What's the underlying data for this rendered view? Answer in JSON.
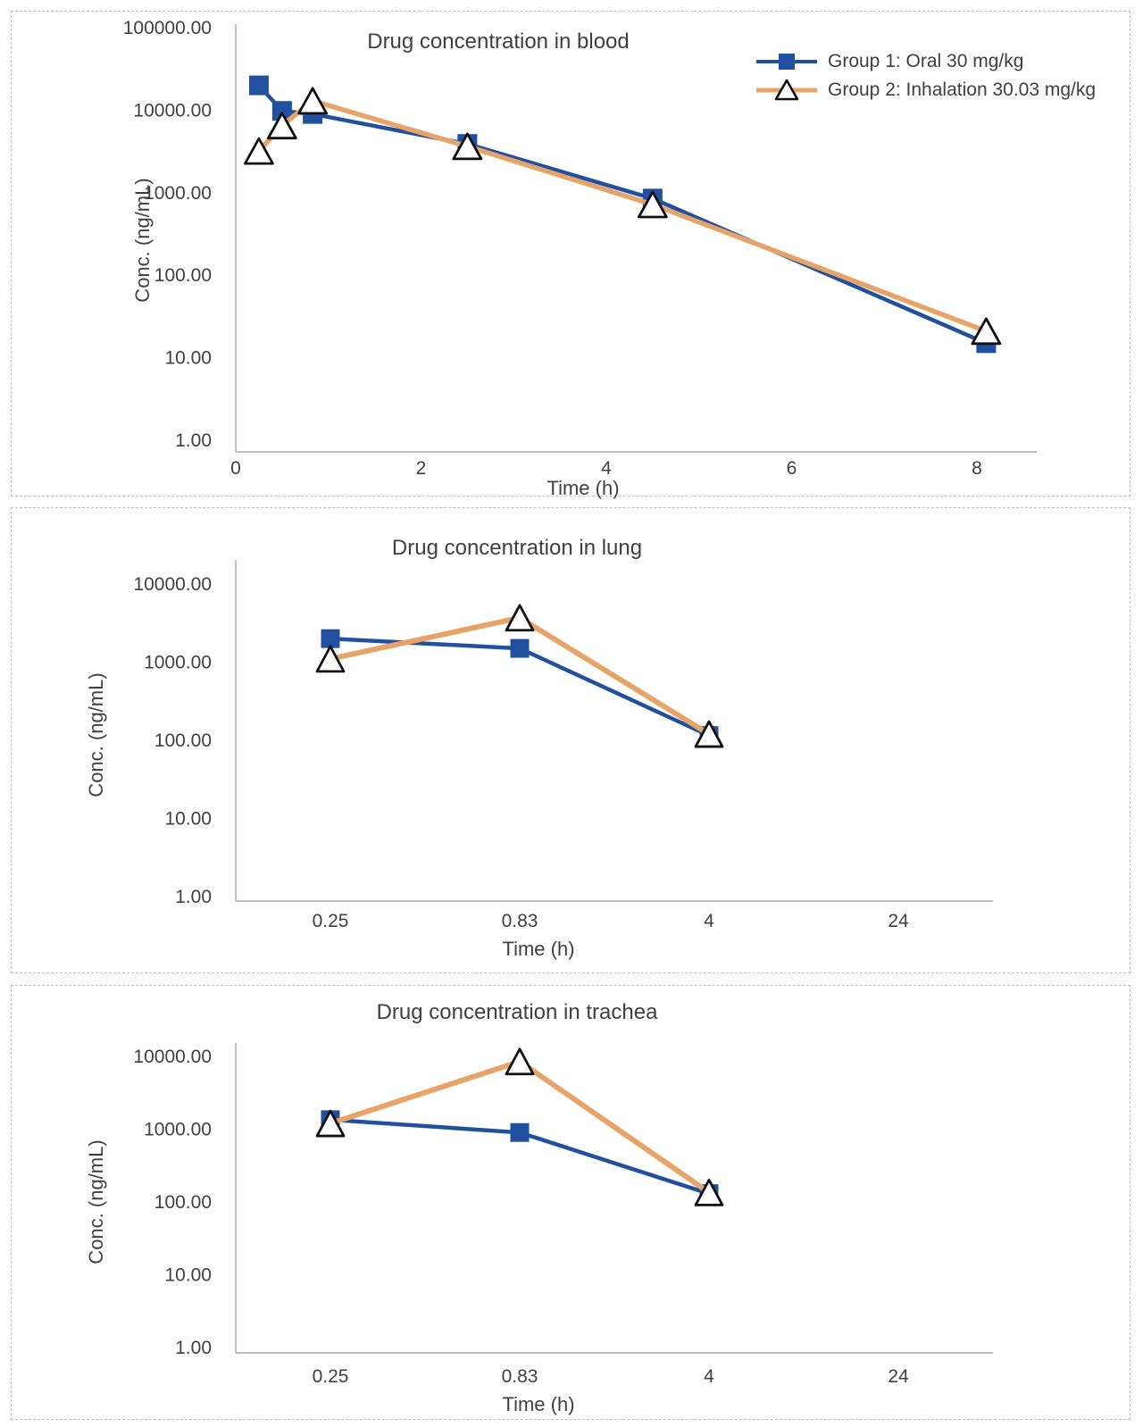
{
  "chart_data": [
    {
      "type": "line",
      "title": "Drug concentration in blood",
      "xlabel": "Time (h)",
      "ylabel": "Conc. (ng/mL)",
      "x_scale": "linear",
      "y_scale": "log",
      "xlim": [
        0,
        8.65
      ],
      "ylim": [
        1,
        100000
      ],
      "x_ticks": [
        "0",
        "2",
        "4",
        "6",
        "8"
      ],
      "x_tick_values": [
        0,
        2,
        4,
        6,
        8
      ],
      "y_ticks": [
        "100000.00",
        "10000.00",
        "1000.00",
        "100.00",
        "10.00",
        "1.00"
      ],
      "y_tick_values": [
        100000,
        10000,
        1000,
        100,
        10,
        1
      ],
      "grid": false,
      "legend_position": "top-right",
      "series": [
        {
          "name": "Group 1: Oral 30 mg/kg",
          "color": "#2150a0",
          "marker": "square",
          "x": [
            0.25,
            0.5,
            0.83,
            2.5,
            4.5,
            8.1
          ],
          "y": [
            20000,
            9800,
            9000,
            3900,
            850,
            15
          ]
        },
        {
          "name": "Group 2: Inhalation 30.03 mg/kg",
          "color": "#e7a468",
          "marker": "triangle",
          "x": [
            0.25,
            0.5,
            0.83,
            2.5,
            4.5,
            8.1
          ],
          "y": [
            3200,
            6500,
            13000,
            3650,
            720,
            21
          ]
        }
      ]
    },
    {
      "type": "line",
      "title": "Drug concentration in lung",
      "xlabel": "Time (h)",
      "ylabel": "Conc. (ng/mL)",
      "x_scale": "category",
      "y_scale": "log",
      "ylim": [
        1,
        10000
      ],
      "categories": [
        "0.25",
        "0.83",
        "4",
        "24"
      ],
      "y_ticks": [
        "10000.00",
        "1000.00",
        "100.00",
        "10.00",
        "1.00"
      ],
      "y_tick_values": [
        10000,
        1000,
        100,
        10,
        1
      ],
      "grid": false,
      "legend_position": "none",
      "series": [
        {
          "name": "Group 1: Oral 30 mg/kg",
          "color": "#2150a0",
          "marker": "square",
          "values": [
            2000,
            1500,
            115,
            null
          ]
        },
        {
          "name": "Group 2: Inhalation 30.03 mg/kg",
          "color": "#e7a468",
          "marker": "triangle",
          "values": [
            1100,
            3700,
            120,
            null
          ]
        }
      ]
    },
    {
      "type": "line",
      "title": "Drug concentration in trachea",
      "xlabel": "Time (h)",
      "ylabel": "Conc. (ng/mL)",
      "x_scale": "category",
      "y_scale": "log",
      "ylim": [
        1,
        10000
      ],
      "categories": [
        "0.25",
        "0.83",
        "4",
        "24"
      ],
      "y_ticks": [
        "10000.00",
        "1000.00",
        "100.00",
        "10.00",
        "1.00"
      ],
      "y_tick_values": [
        10000,
        1000,
        100,
        10,
        1
      ],
      "grid": false,
      "legend_position": "none",
      "series": [
        {
          "name": "Group 1: Oral 30 mg/kg",
          "color": "#2150a0",
          "marker": "square",
          "values": [
            1350,
            900,
            130,
            null
          ]
        },
        {
          "name": "Group 2: Inhalation 30.03 mg/kg",
          "color": "#e7a468",
          "marker": "triangle",
          "values": [
            1200,
            8500,
            135,
            null
          ]
        }
      ]
    }
  ],
  "styles": {
    "axis_color": "#bfbfbf",
    "text_color": "#404040",
    "marker_outline": "#111111",
    "blue": "#2150a0",
    "orange": "#e7a468"
  }
}
